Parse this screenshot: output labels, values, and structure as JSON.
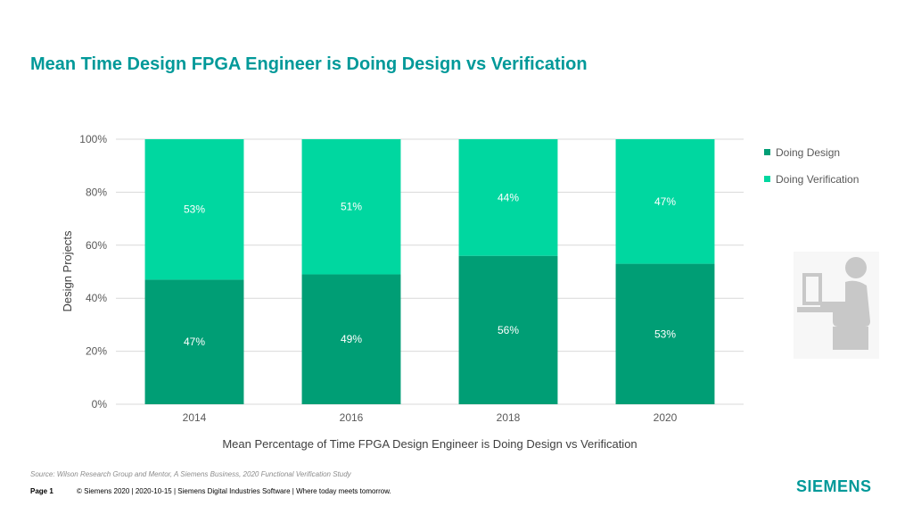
{
  "title": "Mean Time Design FPGA Engineer is Doing Design vs Verification",
  "chart_data": {
    "type": "bar",
    "stacked": true,
    "categories": [
      "2014",
      "2016",
      "2018",
      "2020"
    ],
    "series": [
      {
        "name": "Doing Design",
        "color": "#009e75",
        "values": [
          47,
          49,
          56,
          53
        ],
        "labels": [
          "47%",
          "49%",
          "56%",
          "53%"
        ]
      },
      {
        "name": "Doing Verification",
        "color": "#00d7a0",
        "values": [
          53,
          51,
          44,
          47
        ],
        "labels": [
          "53%",
          "51%",
          "44%",
          "47%"
        ]
      }
    ],
    "ylabel": "Design Projects",
    "xlabel": "Mean Percentage of Time FPGA Design Engineer is Doing Design vs Verification",
    "ylim": [
      0,
      100
    ],
    "yticks": [
      "0%",
      "20%",
      "40%",
      "60%",
      "80%",
      "100%"
    ],
    "grid": true,
    "legend_position": "right"
  },
  "source": "Source:  Wilson Research Group and Mentor,  A Siemens Business, 2020 Functional Verification Study",
  "footer": {
    "page": "Page 1",
    "text": "© Siemens 2020 | 2020-10-15 | Siemens Digital Industries Software | Where today meets tomorrow."
  },
  "logo": "SIEMENS",
  "icons": {
    "illustration": "person-at-computer-icon"
  }
}
